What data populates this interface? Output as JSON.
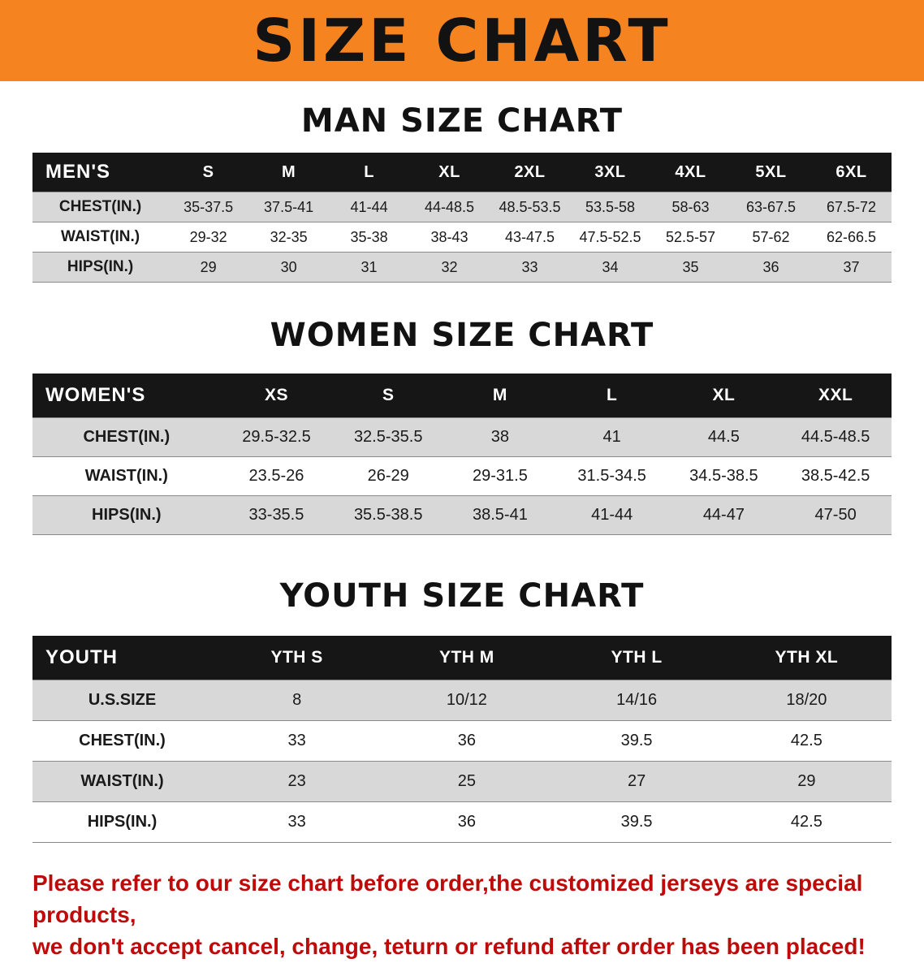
{
  "banner": {
    "title": "SIZE CHART"
  },
  "colors": {
    "banner_orange": "#f5831f",
    "table_header_black": "#161616",
    "row_gray": "#d8d8d8",
    "footer_red": "#bf0a0a"
  },
  "men": {
    "title": "MAN SIZE CHART",
    "header": [
      "MEN'S",
      "S",
      "M",
      "L",
      "XL",
      "2XL",
      "3XL",
      "4XL",
      "5XL",
      "6XL"
    ],
    "rows": [
      [
        "CHEST(IN.)",
        "35-37.5",
        "37.5-41",
        "41-44",
        "44-48.5",
        "48.5-53.5",
        "53.5-58",
        "58-63",
        "63-67.5",
        "67.5-72"
      ],
      [
        "WAIST(IN.)",
        "29-32",
        "32-35",
        "35-38",
        "38-43",
        "43-47.5",
        "47.5-52.5",
        "52.5-57",
        "57-62",
        "62-66.5"
      ],
      [
        "HIPS(IN.)",
        "29",
        "30",
        "31",
        "32",
        "33",
        "34",
        "35",
        "36",
        "37"
      ]
    ]
  },
  "women": {
    "title": "WOMEN SIZE CHART",
    "header": [
      "WOMEN'S",
      "XS",
      "S",
      "M",
      "L",
      "XL",
      "XXL"
    ],
    "rows": [
      [
        "CHEST(IN.)",
        "29.5-32.5",
        "32.5-35.5",
        "38",
        "41",
        "44.5",
        "44.5-48.5"
      ],
      [
        "WAIST(IN.)",
        "23.5-26",
        "26-29",
        "29-31.5",
        "31.5-34.5",
        "34.5-38.5",
        "38.5-42.5"
      ],
      [
        "HIPS(IN.)",
        "33-35.5",
        "35.5-38.5",
        "38.5-41",
        "41-44",
        "44-47",
        "47-50"
      ]
    ]
  },
  "youth": {
    "title": "YOUTH SIZE CHART",
    "header": [
      "YOUTH",
      "YTH S",
      "YTH M",
      "YTH L",
      "YTH XL"
    ],
    "rows": [
      [
        "U.S.SIZE",
        "8",
        "10/12",
        "14/16",
        "18/20"
      ],
      [
        "CHEST(IN.)",
        "33",
        "36",
        "39.5",
        "42.5"
      ],
      [
        "WAIST(IN.)",
        "23",
        "25",
        "27",
        "29"
      ],
      [
        "HIPS(IN.)",
        "33",
        "36",
        "39.5",
        "42.5"
      ]
    ]
  },
  "footer": {
    "line1": "Please refer to our size chart before order,the customized jerseys are special products,",
    "line2": "we don't accept cancel, change, teturn or refund after order has been placed!"
  }
}
